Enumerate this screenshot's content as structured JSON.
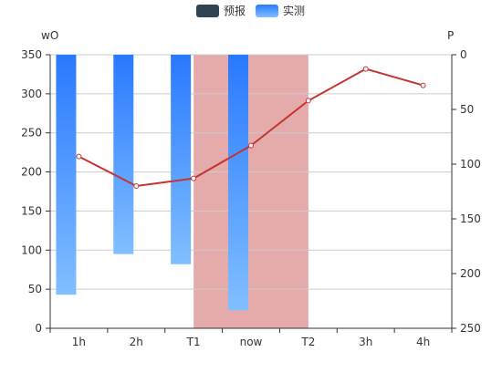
{
  "chart_data": {
    "type": "bar",
    "categories": [
      "1h",
      "2h",
      "T1",
      "now",
      "T2",
      "3h",
      "4h"
    ],
    "highlight_band": {
      "from": "T1",
      "to": "T2",
      "color": "#e5aaaa"
    },
    "series": [
      {
        "name": "预报",
        "kind": "line",
        "axis": "right",
        "color": "#c23531",
        "legend_color": "#2f4554",
        "values": [
          93,
          120,
          113,
          83,
          42,
          13,
          28
        ]
      },
      {
        "name": "实测",
        "kind": "bar",
        "axis": "left",
        "color_top": "#2979ff",
        "color_bottom": "#80bfff",
        "values": [
          307,
          255,
          268,
          327,
          null,
          null,
          null
        ]
      }
    ],
    "left_axis": {
      "label": "wO",
      "min": 0,
      "max": 350,
      "ticks": [
        0,
        50,
        100,
        150,
        200,
        250,
        300,
        350
      ],
      "inverse": true
    },
    "right_axis": {
      "label": "P",
      "min": 0,
      "max": 250,
      "ticks": [
        0,
        50,
        100,
        150,
        200,
        250
      ],
      "inverse": true
    },
    "grid": true,
    "legend_position": "top-center"
  }
}
